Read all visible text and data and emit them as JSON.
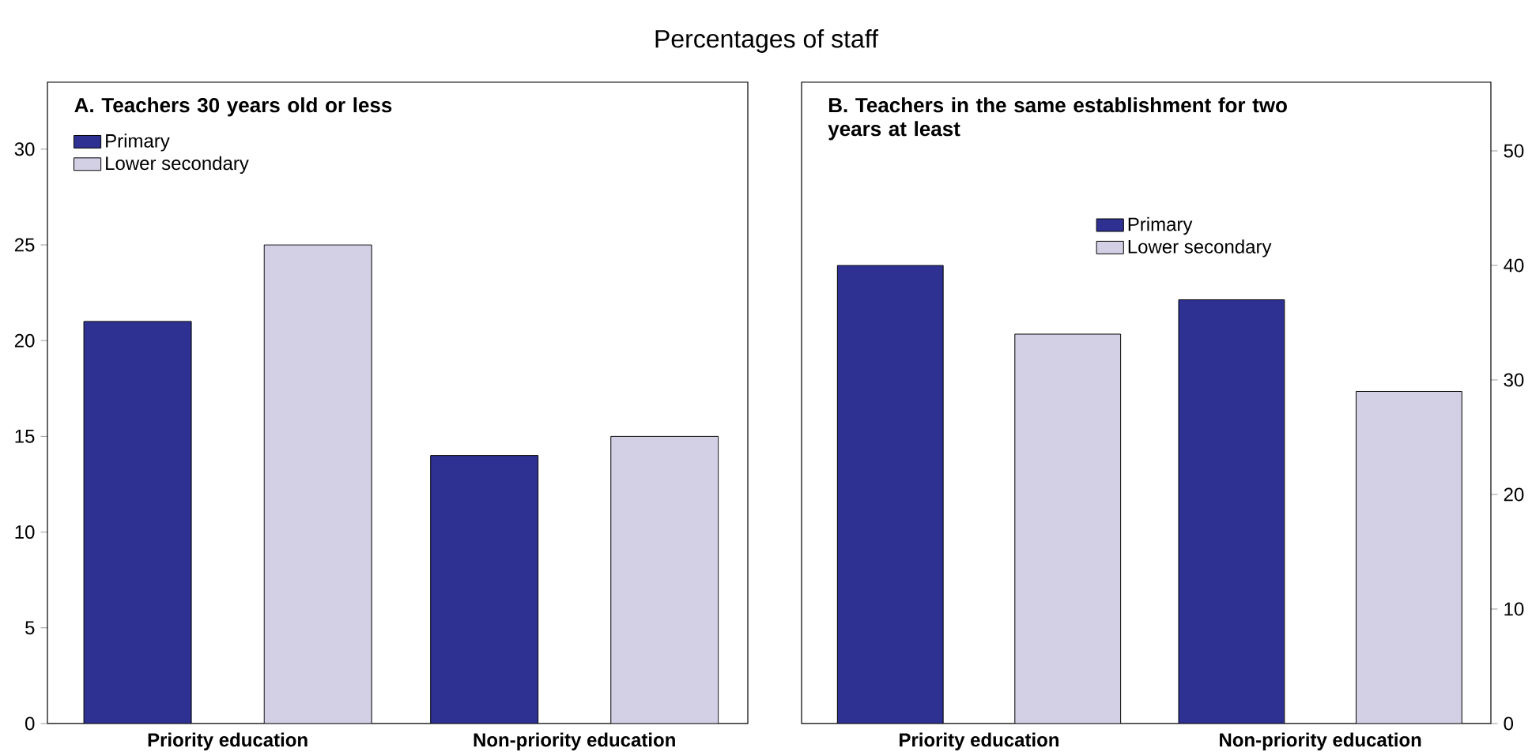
{
  "chart_data": [
    {
      "type": "bar",
      "title": "A. Teachers 30 years old or less",
      "annotations": [
        "Percentages of staff"
      ],
      "categories": [
        "Priority education",
        "Non-priority education"
      ],
      "series": [
        {
          "name": "Primary",
          "color": "#2e3192",
          "values": [
            21,
            14
          ]
        },
        {
          "name": "Lower secondary",
          "color": "#d3d0e6",
          "values": [
            25,
            15
          ]
        }
      ],
      "ylim": [
        0,
        33.5
      ],
      "yticks": [
        0,
        5,
        10,
        15,
        20,
        25,
        30
      ],
      "legend": "top left"
    },
    {
      "type": "bar",
      "title": "B. Teachers in the same establishment for two years at least",
      "categories": [
        "Priority education",
        "Non-priority education"
      ],
      "series": [
        {
          "name": "Primary",
          "color": "#2e3192",
          "values": [
            40,
            37
          ]
        },
        {
          "name": "Lower secondary",
          "color": "#d3d0e6",
          "values": [
            34,
            29
          ]
        }
      ],
      "ylim": [
        0,
        56
      ],
      "yticks": [
        0,
        10,
        20,
        30,
        40,
        50
      ],
      "legend": "top"
    }
  ]
}
